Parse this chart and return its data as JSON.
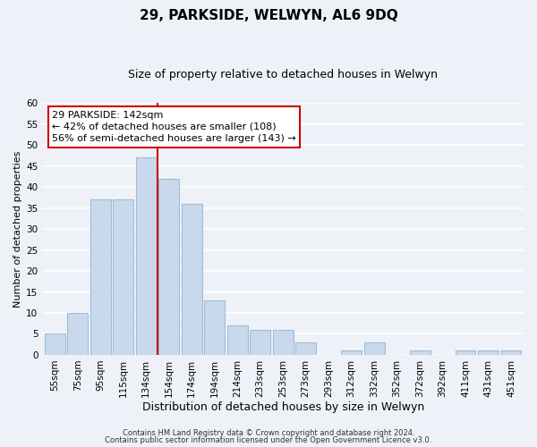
{
  "title": "29, PARKSIDE, WELWYN, AL6 9DQ",
  "subtitle": "Size of property relative to detached houses in Welwyn",
  "xlabel": "Distribution of detached houses by size in Welwyn",
  "ylabel": "Number of detached properties",
  "bar_labels": [
    "55sqm",
    "75sqm",
    "95sqm",
    "115sqm",
    "134sqm",
    "154sqm",
    "174sqm",
    "194sqm",
    "214sqm",
    "233sqm",
    "253sqm",
    "273sqm",
    "293sqm",
    "312sqm",
    "332sqm",
    "352sqm",
    "372sqm",
    "392sqm",
    "411sqm",
    "431sqm",
    "451sqm"
  ],
  "bar_values": [
    5,
    10,
    37,
    37,
    47,
    42,
    36,
    13,
    7,
    6,
    6,
    3,
    0,
    1,
    3,
    0,
    1,
    0,
    1,
    1,
    1
  ],
  "bar_color": "#c8d9ed",
  "bar_edge_color": "#a0bcd4",
  "ylim": [
    0,
    60
  ],
  "yticks": [
    0,
    5,
    10,
    15,
    20,
    25,
    30,
    35,
    40,
    45,
    50,
    55,
    60
  ],
  "reference_line_x": 4.5,
  "reference_line_color": "#cc0000",
  "annotation_line1": "29 PARKSIDE: 142sqm",
  "annotation_line2": "← 42% of detached houses are smaller (108)",
  "annotation_line3": "56% of semi-detached houses are larger (143) →",
  "annotation_box_color": "#ffffff",
  "annotation_box_edge": "#cc0000",
  "footer_line1": "Contains HM Land Registry data © Crown copyright and database right 2024.",
  "footer_line2": "Contains public sector information licensed under the Open Government Licence v3.0.",
  "background_color": "#eef2f8",
  "grid_color": "#ffffff",
  "title_fontsize": 11,
  "subtitle_fontsize": 9,
  "tick_fontsize": 7.5,
  "ylabel_fontsize": 8,
  "xlabel_fontsize": 9,
  "annotation_fontsize": 8,
  "footer_fontsize": 6
}
